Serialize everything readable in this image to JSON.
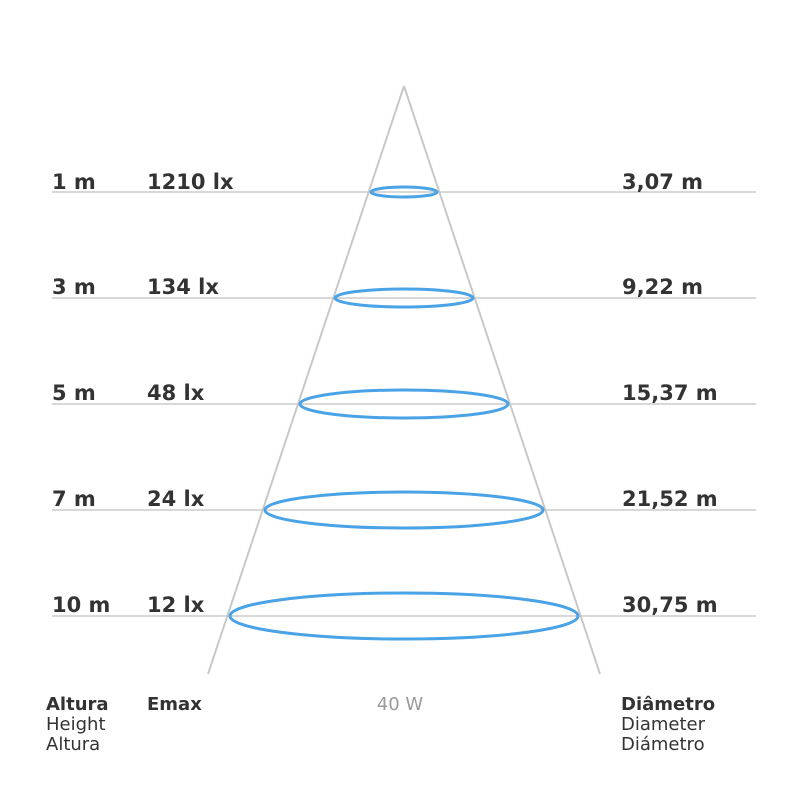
{
  "rows": [
    {
      "height": "1 m",
      "emax": "1210 lx",
      "diameter": "3,07 m"
    },
    {
      "height": "3 m",
      "emax": "134 lx",
      "diameter": "9,22 m"
    },
    {
      "height": "5 m",
      "emax": "48 lx",
      "diameter": "15,37 m"
    },
    {
      "height": "7 m",
      "emax": "24 lx",
      "diameter": "21,52 m"
    },
    {
      "height": "10 m",
      "emax": "12 lx",
      "diameter": "30,75 m"
    }
  ],
  "legend": {
    "height": {
      "pt": "Altura",
      "en": "Height",
      "es": "Altura"
    },
    "emax": "Emax",
    "power": "40 W",
    "diameter": {
      "pt": "Diâmetro",
      "en": "Diameter",
      "es": "Diámetro"
    }
  },
  "colors": {
    "ring": "#4aa3e6",
    "line": "#cccccc",
    "text": "#333333",
    "muted": "#9a9a9a"
  }
}
